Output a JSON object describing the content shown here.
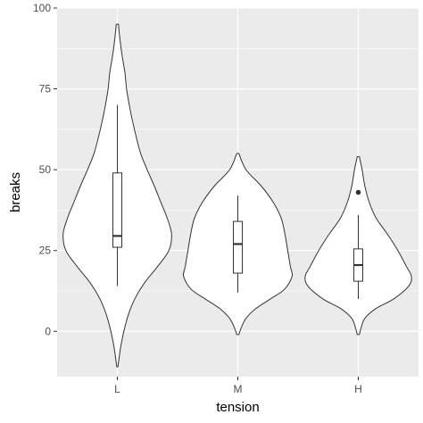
{
  "chart_data": {
    "type": "violin",
    "xlabel": "tension",
    "ylabel": "breaks",
    "categories": [
      "L",
      "M",
      "H"
    ],
    "ylim": [
      -14,
      100
    ],
    "yticks": [
      0,
      25,
      50,
      75,
      100
    ],
    "ytick_labels": [
      "0",
      "25",
      "50",
      "75",
      "100"
    ],
    "grid": true,
    "colors": {
      "panel": "#ebebeb",
      "grid": "#ffffff",
      "violin_fill": "#ffffff",
      "outline": "#333333",
      "tick_text": "#4d4d4d"
    },
    "violins": [
      {
        "category": "L",
        "min_y": -11,
        "max_y": 95,
        "density_profile": [
          [
            95,
            0.02
          ],
          [
            90,
            0.05
          ],
          [
            85,
            0.09
          ],
          [
            80,
            0.14
          ],
          [
            75,
            0.17
          ],
          [
            70,
            0.22
          ],
          [
            65,
            0.28
          ],
          [
            60,
            0.35
          ],
          [
            55,
            0.43
          ],
          [
            50,
            0.55
          ],
          [
            45,
            0.68
          ],
          [
            40,
            0.8
          ],
          [
            35,
            0.92
          ],
          [
            30,
            1.0
          ],
          [
            25,
            0.95
          ],
          [
            20,
            0.74
          ],
          [
            15,
            0.5
          ],
          [
            10,
            0.32
          ],
          [
            5,
            0.2
          ],
          [
            0,
            0.12
          ],
          [
            -5,
            0.06
          ],
          [
            -11,
            0.01
          ]
        ],
        "box": {
          "q1": 26,
          "median": 29.5,
          "q3": 49,
          "whisker_low": 14,
          "whisker_high": 70
        },
        "outliers": []
      },
      {
        "category": "M",
        "min_y": -1,
        "max_y": 55,
        "density_profile": [
          [
            55,
            0.02
          ],
          [
            50,
            0.15
          ],
          [
            45,
            0.43
          ],
          [
            40,
            0.65
          ],
          [
            35,
            0.8
          ],
          [
            30,
            0.87
          ],
          [
            25,
            0.92
          ],
          [
            20,
            0.97
          ],
          [
            17,
            1.0
          ],
          [
            13,
            0.86
          ],
          [
            10,
            0.6
          ],
          [
            7,
            0.33
          ],
          [
            4,
            0.15
          ],
          [
            1,
            0.06
          ],
          [
            -1,
            0.02
          ]
        ],
        "box": {
          "q1": 18,
          "median": 27,
          "q3": 34,
          "whisker_low": 12,
          "whisker_high": 42
        },
        "outliers": []
      },
      {
        "category": "H",
        "min_y": -1,
        "max_y": 54,
        "density_profile": [
          [
            54,
            0.02
          ],
          [
            50,
            0.07
          ],
          [
            45,
            0.12
          ],
          [
            40,
            0.2
          ],
          [
            35,
            0.33
          ],
          [
            30,
            0.54
          ],
          [
            25,
            0.73
          ],
          [
            20,
            0.89
          ],
          [
            17,
            0.98
          ],
          [
            14,
            0.93
          ],
          [
            10,
            0.65
          ],
          [
            7,
            0.32
          ],
          [
            4,
            0.12
          ],
          [
            1,
            0.05
          ],
          [
            -1,
            0.02
          ]
        ],
        "box": {
          "q1": 15.5,
          "median": 20.5,
          "q3": 25.5,
          "whisker_low": 10,
          "whisker_high": 36
        },
        "outliers": [
          43
        ]
      }
    ]
  }
}
